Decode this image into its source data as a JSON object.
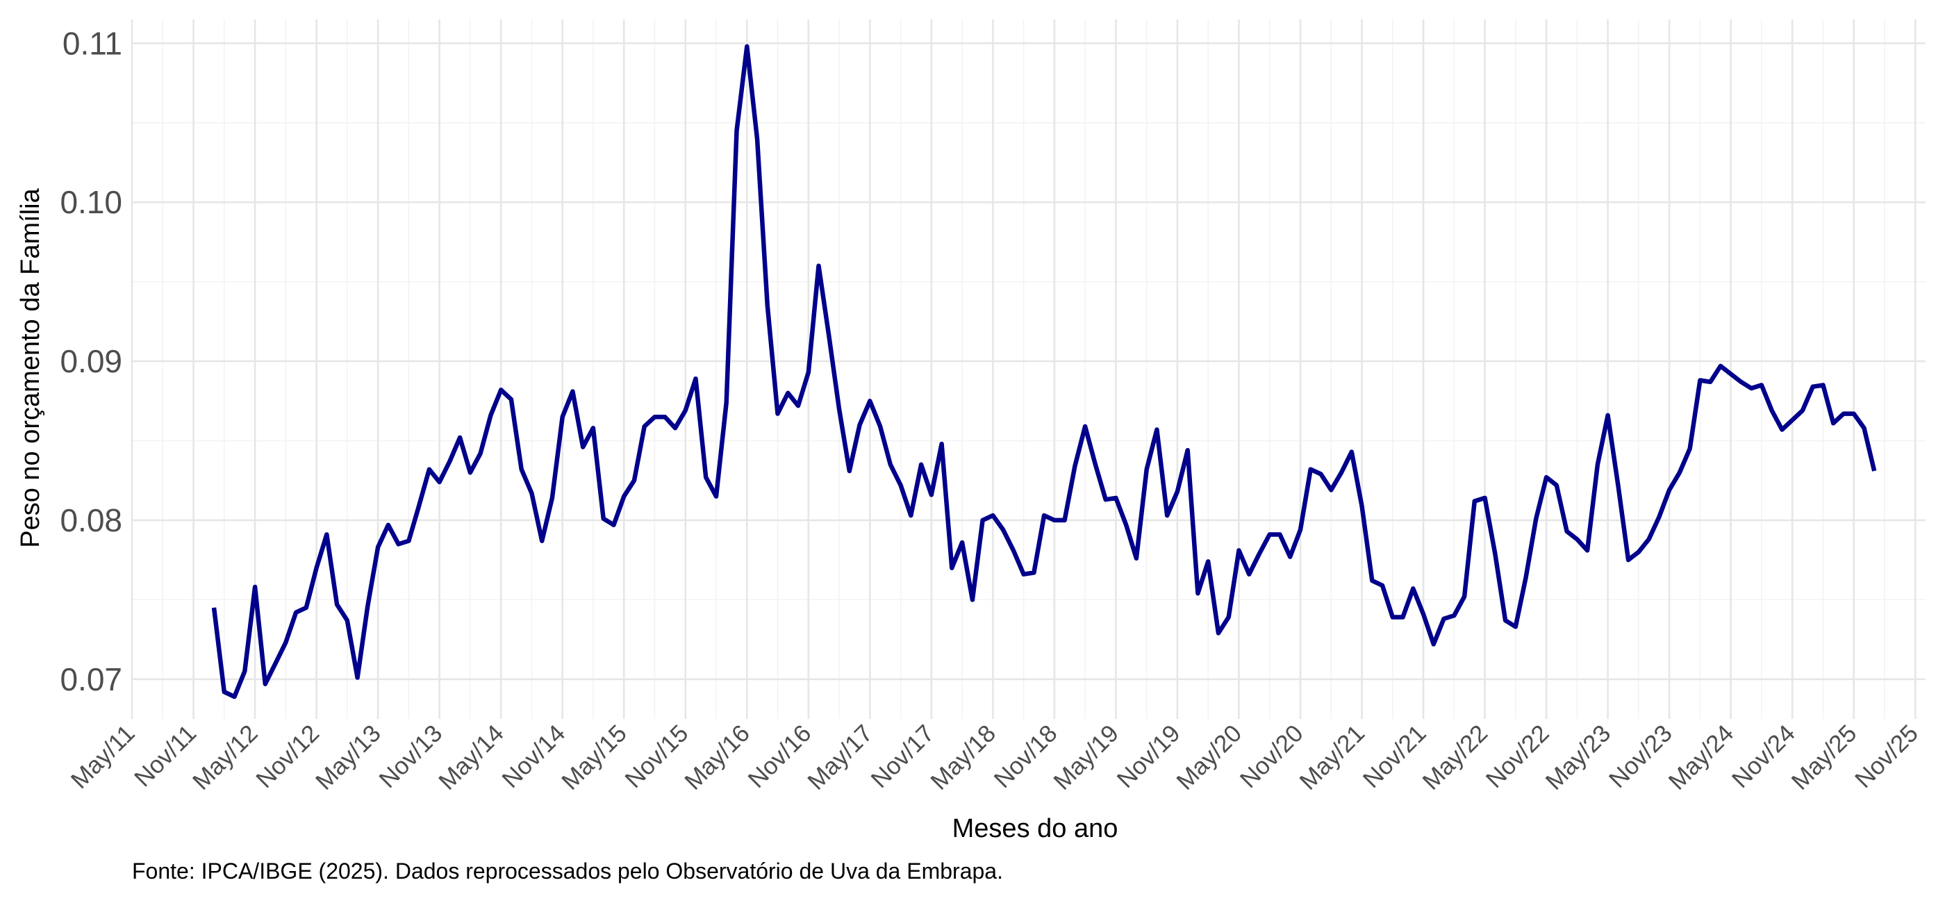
{
  "chart_data": {
    "type": "line",
    "title": "",
    "xlabel": "Meses do ano",
    "ylabel": "Peso no orçamento da Família",
    "caption": "Fonte: IPCA/IBGE (2025). Dados reprocessados pelo Observatório de Uva da Embrapa.",
    "ylim": [
      0.0675,
      0.1115
    ],
    "xlim": [
      "2011-05",
      "2025-12"
    ],
    "y_ticks": [
      "0.07",
      "0.08",
      "0.09",
      "0.10",
      "0.11"
    ],
    "x_ticks": [
      "May/11",
      "Nov/11",
      "May/12",
      "Nov/12",
      "May/13",
      "Nov/13",
      "May/14",
      "Nov/14",
      "May/15",
      "Nov/15",
      "May/16",
      "Nov/16",
      "May/17",
      "Nov/17",
      "May/18",
      "Nov/18",
      "May/19",
      "Nov/19",
      "May/20",
      "Nov/20",
      "May/21",
      "Nov/21",
      "May/22",
      "Nov/22",
      "May/23",
      "Nov/23",
      "May/24",
      "Nov/24",
      "May/25",
      "Nov/25"
    ],
    "grid": true,
    "legend": "none",
    "colors": {
      "line": "#00008B",
      "grid": "#E6E6E6",
      "text": "#4D4D4D"
    },
    "series": [
      {
        "start": "2012-01",
        "values": [
          0.0745,
          0.0692,
          0.0689,
          0.0705,
          0.0758,
          0.0697,
          0.071,
          0.0723,
          0.0742,
          0.0745,
          0.077,
          0.0791,
          0.0747,
          0.0737,
          0.0701,
          0.0746,
          0.0783,
          0.0797,
          0.0785,
          0.0787,
          0.0809,
          0.0832,
          0.0824,
          0.0837,
          0.0852,
          0.083,
          0.0842,
          0.0866,
          0.0882,
          0.0876,
          0.0832,
          0.0817,
          0.0787,
          0.0814,
          0.0865,
          0.0881,
          0.0846,
          0.0858,
          0.0801,
          0.0797,
          0.0815,
          0.0825,
          0.0859,
          0.0865,
          0.0865,
          0.0858,
          0.0869,
          0.0889,
          0.0827,
          0.0815,
          0.0874,
          0.1045,
          0.1098,
          0.104,
          0.0935,
          0.0867,
          0.088,
          0.0872,
          0.0893,
          0.096,
          0.0916,
          0.087,
          0.0831,
          0.086,
          0.0875,
          0.0859,
          0.0835,
          0.0822,
          0.0803,
          0.0835,
          0.0816,
          0.0848,
          0.077,
          0.0786,
          0.075,
          0.08,
          0.0803,
          0.0794,
          0.0781,
          0.0766,
          0.0767,
          0.0803,
          0.08,
          0.08,
          0.0834,
          0.0859,
          0.0835,
          0.0813,
          0.0814,
          0.0797,
          0.0776,
          0.0832,
          0.0857,
          0.0803,
          0.0818,
          0.0844,
          0.0754,
          0.0774,
          0.0729,
          0.0739,
          0.0781,
          0.0766,
          0.0779,
          0.0791,
          0.0791,
          0.0777,
          0.0794,
          0.0832,
          0.0829,
          0.0819,
          0.083,
          0.0843,
          0.0809,
          0.0762,
          0.0759,
          0.0739,
          0.0739,
          0.0757,
          0.0741,
          0.0722,
          0.0738,
          0.074,
          0.0752,
          0.0812,
          0.0814,
          0.0779,
          0.0737,
          0.0733,
          0.0764,
          0.0801,
          0.0827,
          0.0822,
          0.0793,
          0.0788,
          0.0781,
          0.0835,
          0.0866,
          0.0822,
          0.0775,
          0.078,
          0.0788,
          0.0802,
          0.0819,
          0.083,
          0.0845,
          0.0888,
          0.0887,
          0.0897,
          0.0892,
          0.0887,
          0.0883,
          0.0885,
          0.0869,
          0.0857,
          0.0863,
          0.0869,
          0.0884,
          0.0885,
          0.0861,
          0.0867,
          0.0867,
          0.0858,
          0.0831
        ]
      }
    ]
  }
}
